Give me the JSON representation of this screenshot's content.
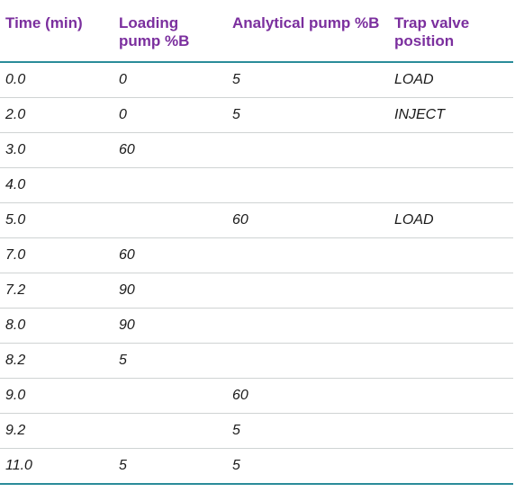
{
  "table": {
    "headers": [
      "Time (min)",
      "Loading pump %B",
      "Analytical pump %B",
      "Trap valve position"
    ],
    "rows": [
      [
        "0.0",
        "0",
        "5",
        "LOAD"
      ],
      [
        "2.0",
        "0",
        "5",
        "INJECT"
      ],
      [
        "3.0",
        "60",
        "",
        ""
      ],
      [
        "4.0",
        "",
        "",
        ""
      ],
      [
        "5.0",
        "",
        "60",
        "LOAD"
      ],
      [
        "7.0",
        "60",
        "",
        ""
      ],
      [
        "7.2",
        "90",
        "",
        ""
      ],
      [
        "8.0",
        "90",
        "",
        ""
      ],
      [
        "8.2",
        "5",
        "",
        ""
      ],
      [
        "9.0",
        "",
        "60",
        ""
      ],
      [
        "9.2",
        "",
        "5",
        ""
      ],
      [
        "11.0",
        "5",
        "5",
        ""
      ]
    ]
  },
  "colors": {
    "header_text": "#7b2f9e",
    "rule": "#2a8c9a"
  }
}
